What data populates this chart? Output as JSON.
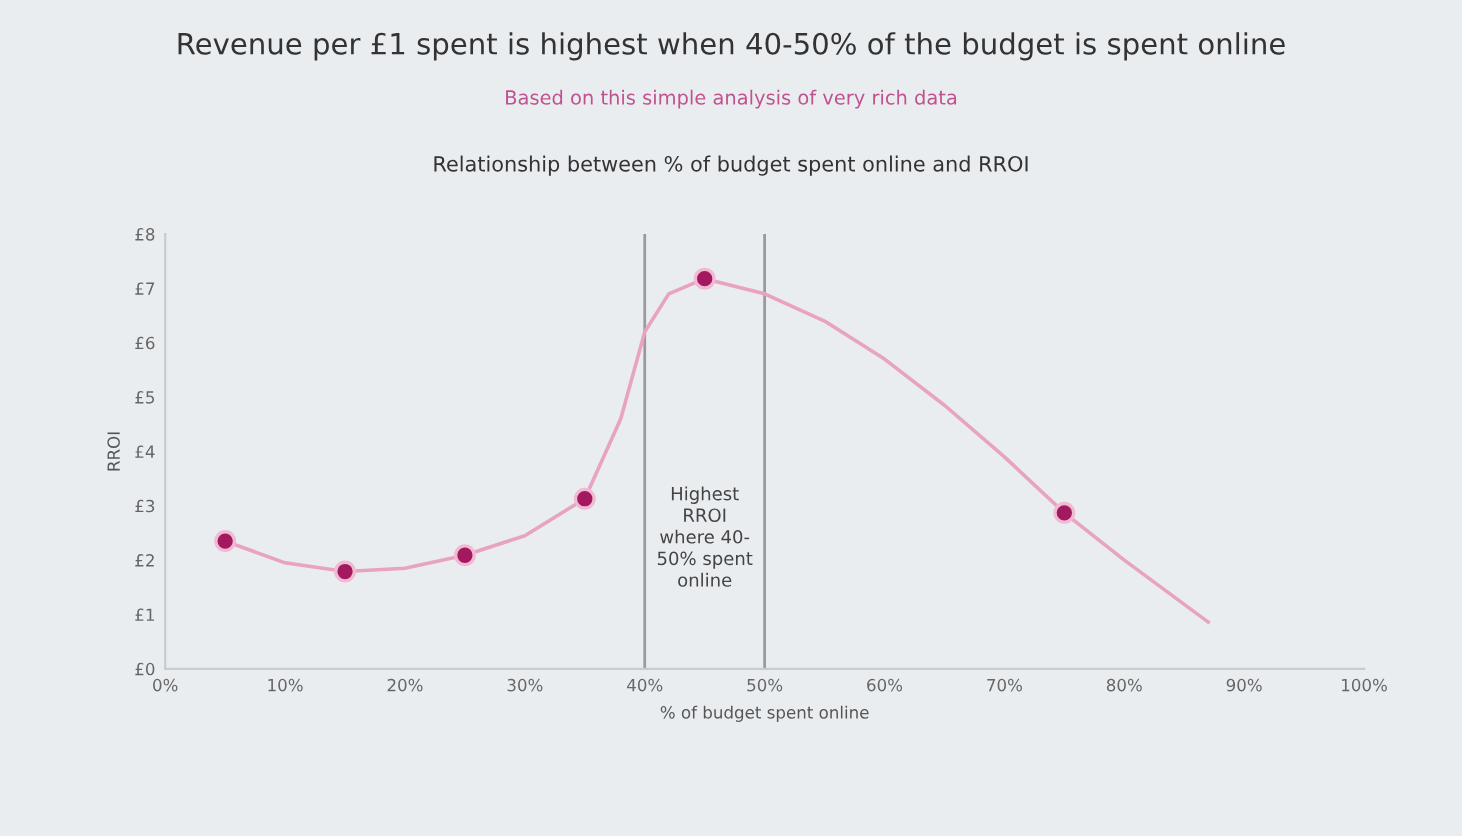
{
  "chart_data": {
    "type": "line",
    "title": "Revenue per £1 spent is highest when 40-50% of the budget is spent online",
    "subtitle": "Based on this simple analysis of very rich data",
    "annotations": [
      "Relationship between % of budget spent online and RROI",
      "Highest\nRROI\nwhere 40-\n50% spent\nonline"
    ],
    "xlabel": "% of budget spent online",
    "ylabel": "RROI",
    "series": [
      {
        "color": "#e7a3bf",
        "marker": "none",
        "x": [
          5,
          10,
          15,
          20,
          25,
          30,
          35,
          38,
          40,
          42,
          45,
          50,
          55,
          60,
          65,
          70,
          75,
          80,
          87
        ],
        "values": [
          2.35,
          1.95,
          1.79,
          1.85,
          2.09,
          2.45,
          3.13,
          4.6,
          6.2,
          6.9,
          7.18,
          6.9,
          6.4,
          5.7,
          4.85,
          3.9,
          2.87,
          2.0,
          0.86
        ]
      },
      {
        "type": "scatter",
        "marker": "circle",
        "color": "#a3195f",
        "x": [
          5,
          15,
          25,
          35,
          45,
          75
        ],
        "values": [
          2.35,
          1.79,
          2.09,
          3.13,
          7.18,
          2.87
        ]
      }
    ],
    "ref_lines": [
      {
        "axis": "x",
        "value": 40,
        "color": "#9a9a9a"
      },
      {
        "axis": "x",
        "value": 50,
        "color": "#9a9a9a"
      }
    ],
    "xlim": [
      0,
      100
    ],
    "xticks": [
      {
        "value": 0,
        "label": "0%"
      },
      {
        "value": 10,
        "label": "10%"
      },
      {
        "value": 20,
        "label": "20%"
      },
      {
        "value": 30,
        "label": "30%"
      },
      {
        "value": 40,
        "label": "40%"
      },
      {
        "value": 50,
        "label": "50%"
      },
      {
        "value": 60,
        "label": "60%"
      },
      {
        "value": 70,
        "label": "70%"
      },
      {
        "value": 80,
        "label": "80%"
      },
      {
        "value": 90,
        "label": "90%"
      },
      {
        "value": 100,
        "label": "100%"
      }
    ],
    "ylim": [
      0,
      8
    ],
    "yticks": [
      {
        "value": 0,
        "label": "£0"
      },
      {
        "value": 1,
        "label": "£1"
      },
      {
        "value": 2,
        "label": "£2"
      },
      {
        "value": 3,
        "label": "£3"
      },
      {
        "value": 4,
        "label": "£4"
      },
      {
        "value": 5,
        "label": "£5"
      },
      {
        "value": 6,
        "label": "£6"
      },
      {
        "value": 7,
        "label": "£7"
      },
      {
        "value": 8,
        "label": "£8"
      }
    ],
    "grid": false,
    "legend": false
  }
}
